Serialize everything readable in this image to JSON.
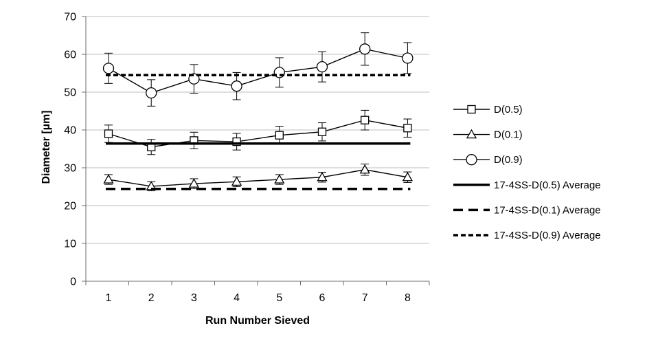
{
  "chart_data": {
    "type": "line",
    "title": "",
    "xlabel": "Run Number Sieved",
    "ylabel": "Diameter [µm]",
    "categories": [
      "1",
      "2",
      "3",
      "4",
      "5",
      "6",
      "7",
      "8"
    ],
    "ylim": [
      0,
      70
    ],
    "yticks": [
      0,
      10,
      20,
      30,
      40,
      50,
      60,
      70
    ],
    "grid": true,
    "legend_position": "right",
    "series": [
      {
        "name": "D(0.5)",
        "marker": "square",
        "line_style": "solid",
        "color": "#000000",
        "values": [
          39.0,
          35.5,
          37.2,
          36.9,
          38.6,
          39.5,
          42.6,
          40.5
        ],
        "error": [
          2.3,
          2.0,
          2.2,
          2.2,
          2.4,
          2.4,
          2.6,
          2.4
        ]
      },
      {
        "name": "D(0.1)",
        "marker": "triangle",
        "line_style": "solid",
        "color": "#000000",
        "values": [
          26.9,
          25.1,
          25.8,
          26.3,
          26.9,
          27.5,
          29.5,
          27.5
        ],
        "error": [
          1.3,
          1.2,
          1.3,
          1.3,
          1.3,
          1.3,
          1.5,
          1.4
        ]
      },
      {
        "name": "D(0.9)",
        "marker": "circle",
        "line_style": "solid",
        "color": "#000000",
        "values": [
          56.3,
          49.8,
          53.5,
          51.6,
          55.2,
          56.7,
          61.4,
          59.0
        ],
        "error": [
          4.0,
          3.5,
          3.8,
          3.6,
          3.9,
          4.0,
          4.3,
          4.1
        ]
      },
      {
        "name": "17-4SS-D(0.5) Average",
        "marker": "none",
        "line_style": "solid-thick",
        "color": "#000000",
        "values": [
          36.4,
          36.4,
          36.4,
          36.4,
          36.4,
          36.4,
          36.4,
          36.4
        ]
      },
      {
        "name": "17-4SS-D(0.1) Average",
        "marker": "none",
        "line_style": "long-dash",
        "color": "#000000",
        "values": [
          24.4,
          24.4,
          24.4,
          24.4,
          24.4,
          24.4,
          24.4,
          24.4
        ]
      },
      {
        "name": "17-4SS-D(0.9) Average",
        "marker": "none",
        "line_style": "short-dash",
        "color": "#000000",
        "values": [
          54.5,
          54.5,
          54.5,
          54.5,
          54.5,
          54.5,
          54.5,
          54.5
        ]
      }
    ]
  }
}
